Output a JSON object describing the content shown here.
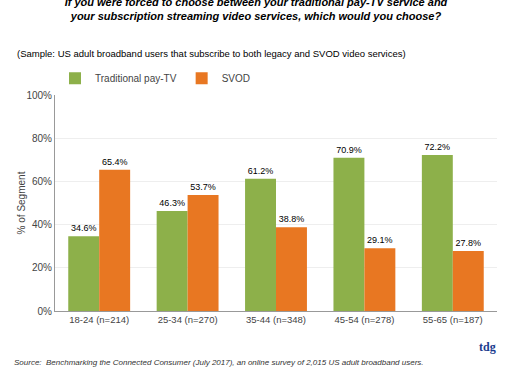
{
  "chart_data": {
    "type": "bar",
    "title": "If you were forced to choose between your traditional pay-TV service and\nyour subscription streaming video services, which would you choose?",
    "subtitle": "(Sample: US adult broadband users that subscribe to both legacy and SVOD video services)",
    "annotations": [
      "Source:  Benchmarking the Connected Consumer (July 2017), an online survey of 2,015 US adult broadband users.",
      "tdg"
    ],
    "categories": [
      "18-24 (n=214)",
      "25-34 (n=270)",
      "35-44 (n=348)",
      "45-54 (n=278)",
      "55-65 (n=187)"
    ],
    "series": [
      {
        "name": "Traditional pay-TV",
        "color": "#8db04a",
        "values": [
          34.6,
          46.3,
          61.2,
          70.9,
          72.2
        ],
        "value_labels": [
          "34.6%",
          "46.3%",
          "61.2%",
          "70.9%",
          "72.2%"
        ]
      },
      {
        "name": "SVOD",
        "color": "#e87722",
        "values": [
          65.4,
          53.7,
          38.8,
          29.1,
          27.8
        ],
        "value_labels": [
          "65.4%",
          "53.7%",
          "38.8%",
          "29.1%",
          "27.8%"
        ]
      }
    ],
    "ylabel": "% of Segment",
    "ylim": [
      0,
      100
    ],
    "yticks": [
      {
        "value": 0,
        "label": "0%"
      },
      {
        "value": 20,
        "label": "20%"
      },
      {
        "value": 40,
        "label": "40%"
      },
      {
        "value": 60,
        "label": "60%"
      },
      {
        "value": 80,
        "label": "80%"
      },
      {
        "value": 100,
        "label": "100%"
      }
    ],
    "grid": true,
    "legend": "upper left",
    "data_labels": true
  }
}
